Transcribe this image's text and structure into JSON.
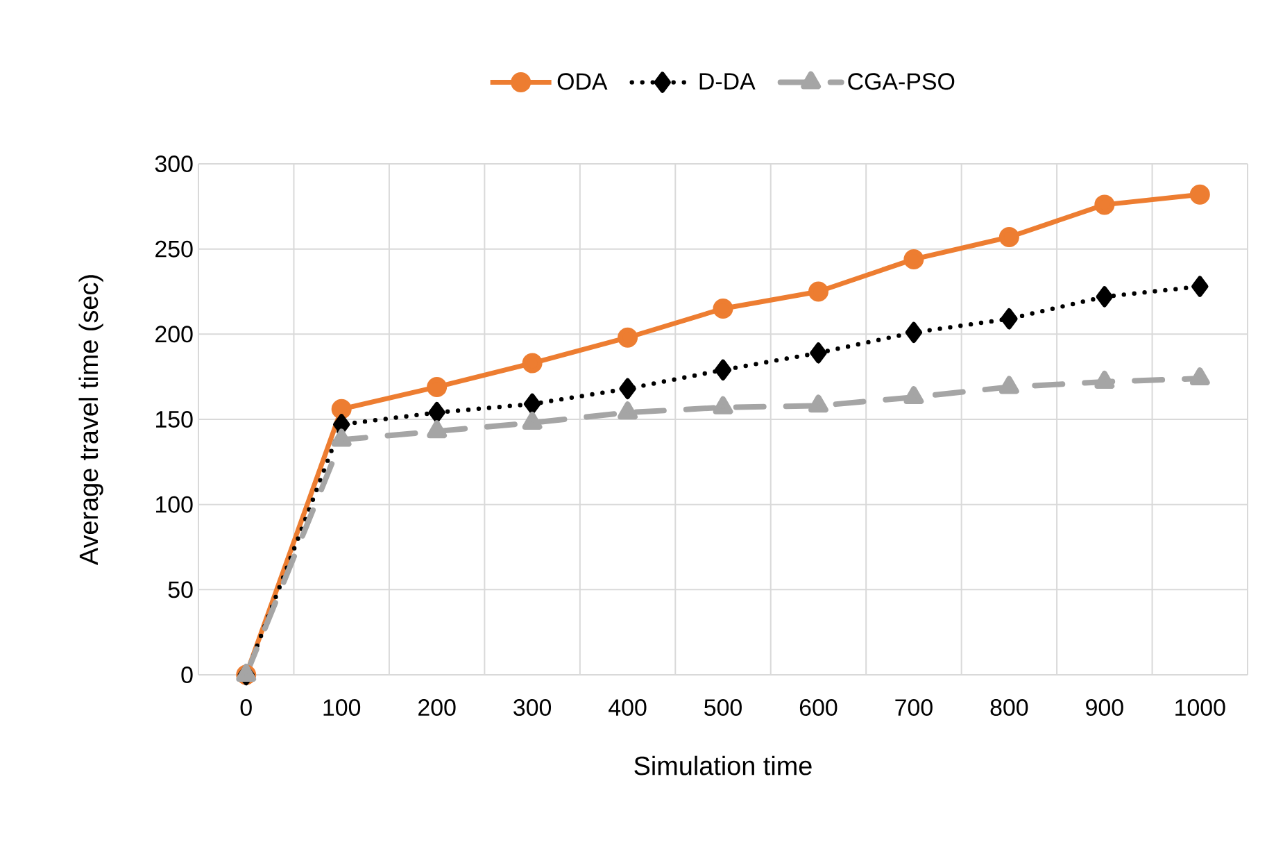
{
  "chart_data": {
    "type": "line",
    "xlabel": "Simulation time",
    "ylabel": "Average travel time (sec)",
    "categories": [
      "0",
      "100",
      "200",
      "300",
      "400",
      "500",
      "600",
      "700",
      "800",
      "900",
      "1000"
    ],
    "series": [
      {
        "name": "ODA",
        "color": "#ed7d31",
        "marker": "circle",
        "line_style": "solid",
        "values": [
          0,
          156,
          169,
          183,
          198,
          215,
          225,
          244,
          257,
          276,
          282
        ]
      },
      {
        "name": "D-DA",
        "color": "#000000",
        "marker": "diamond",
        "line_style": "dotted",
        "values": [
          0,
          147,
          154,
          159,
          168,
          179,
          189,
          201,
          209,
          222,
          228
        ]
      },
      {
        "name": "CGA-PSO",
        "color": "#a5a5a5",
        "marker": "triangle",
        "line_style": "dashed",
        "values": [
          0,
          138,
          143,
          148,
          154,
          157,
          158,
          163,
          169,
          172,
          174
        ]
      }
    ],
    "ylim": [
      0,
      300
    ],
    "yticks": [
      0,
      50,
      100,
      150,
      200,
      250,
      300
    ],
    "grid": true,
    "legend": "top"
  }
}
